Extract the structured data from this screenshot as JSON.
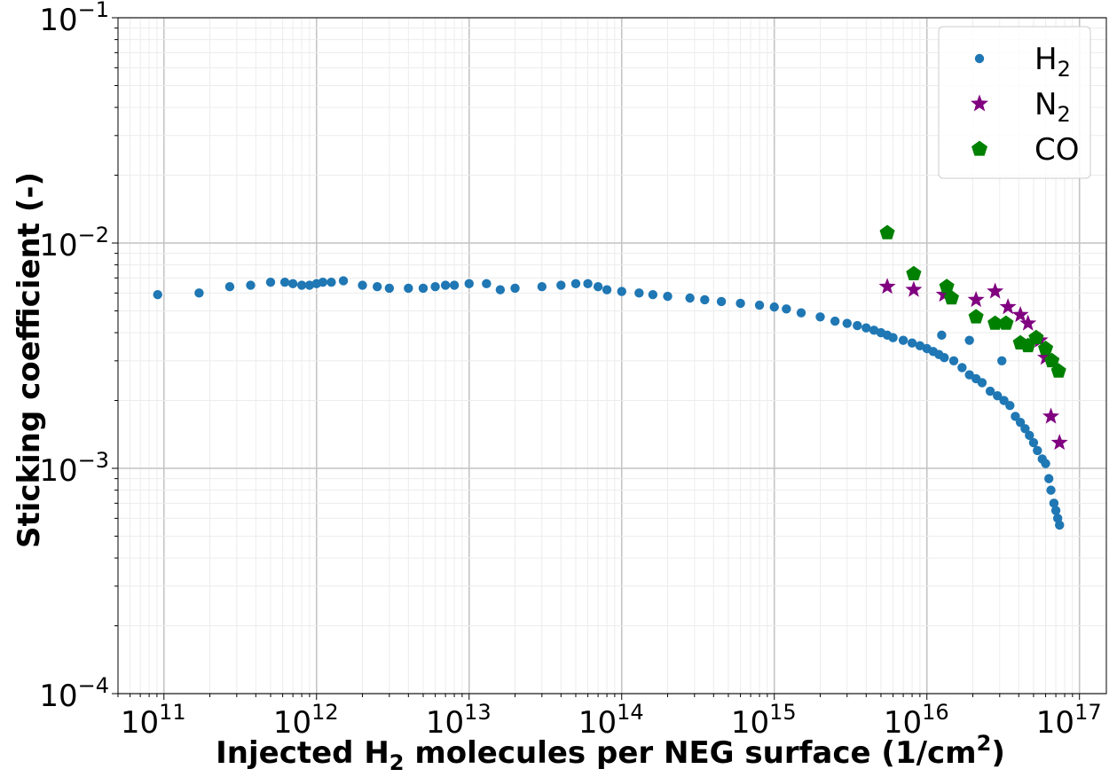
{
  "chart_data": {
    "type": "scatter",
    "title": "",
    "xscale": "log",
    "yscale": "log",
    "xlim": [
      50000000000,
      150000000000000000
    ],
    "ylim": [
      0.0001,
      0.1
    ],
    "grid": true,
    "legend_position": "top-right",
    "xlabel": {
      "pre": "Injected H",
      "sub": "2",
      "mid": " molecules per NEG surface (1/cm",
      "sup": "2",
      "post": ")"
    },
    "ylabel": "Sticking coefficient (-)",
    "x_ticks": [
      {
        "value": 100000000000.0,
        "base": "10",
        "exp": "11"
      },
      {
        "value": 1000000000000.0,
        "base": "10",
        "exp": "12"
      },
      {
        "value": 10000000000000.0,
        "base": "10",
        "exp": "13"
      },
      {
        "value": 100000000000000.0,
        "base": "10",
        "exp": "14"
      },
      {
        "value": 1000000000000000.0,
        "base": "10",
        "exp": "15"
      },
      {
        "value": 1e+16,
        "base": "10",
        "exp": "16"
      },
      {
        "value": 1e+17,
        "base": "10",
        "exp": "17"
      }
    ],
    "y_ticks": [
      {
        "value": 0.0001,
        "base": "10",
        "exp": "−4"
      },
      {
        "value": 0.001,
        "base": "10",
        "exp": "−3"
      },
      {
        "value": 0.01,
        "base": "10",
        "exp": "−2"
      },
      {
        "value": 0.1,
        "base": "10",
        "exp": "−1"
      }
    ],
    "series": [
      {
        "name": "H2",
        "label": "H",
        "label_sub": "2",
        "marker": "circle",
        "color": "#1f77b4",
        "points": [
          [
            91000000000.0,
            0.0059
          ],
          [
            170000000000.0,
            0.006
          ],
          [
            270000000000.0,
            0.0064
          ],
          [
            370000000000.0,
            0.0065
          ],
          [
            500000000000.0,
            0.0067
          ],
          [
            620000000000.0,
            0.0067
          ],
          [
            700000000000.0,
            0.0066
          ],
          [
            800000000000.0,
            0.0065
          ],
          [
            900000000000.0,
            0.0065
          ],
          [
            1000000000000.0,
            0.0066
          ],
          [
            1100000000000.0,
            0.0067
          ],
          [
            1250000000000.0,
            0.0067
          ],
          [
            1500000000000.0,
            0.0068
          ],
          [
            2000000000000.0,
            0.0065
          ],
          [
            2500000000000.0,
            0.0064
          ],
          [
            3000000000000.0,
            0.0063
          ],
          [
            4000000000000.0,
            0.0063
          ],
          [
            5000000000000.0,
            0.0063
          ],
          [
            6000000000000.0,
            0.0064
          ],
          [
            7000000000000.0,
            0.0065
          ],
          [
            8000000000000.0,
            0.0065
          ],
          [
            10000000000000.0,
            0.0066
          ],
          [
            13000000000000.0,
            0.0066
          ],
          [
            16000000000000.0,
            0.0062
          ],
          [
            20000000000000.0,
            0.0063
          ],
          [
            30000000000000.0,
            0.0064
          ],
          [
            40000000000000.0,
            0.0065
          ],
          [
            50000000000000.0,
            0.0066
          ],
          [
            60000000000000.0,
            0.0066
          ],
          [
            70000000000000.0,
            0.0064
          ],
          [
            80000000000000.0,
            0.0062
          ],
          [
            100000000000000.0,
            0.0061
          ],
          [
            130000000000000.0,
            0.006
          ],
          [
            160000000000000.0,
            0.0059
          ],
          [
            200000000000000.0,
            0.0058
          ],
          [
            280000000000000.0,
            0.0057
          ],
          [
            350000000000000.0,
            0.0056
          ],
          [
            450000000000000.0,
            0.0055
          ],
          [
            600000000000000.0,
            0.0054
          ],
          [
            800000000000000.0,
            0.0053
          ],
          [
            1000000000000000.0,
            0.0052
          ],
          [
            1200000000000000.0,
            0.0051
          ],
          [
            1500000000000000.0,
            0.0049
          ],
          [
            2000000000000000.0,
            0.0047
          ],
          [
            2500000000000000.0,
            0.0045
          ],
          [
            3000000000000000.0,
            0.0044
          ],
          [
            3500000000000000.0,
            0.0043
          ],
          [
            4000000000000000.0,
            0.0042
          ],
          [
            4500000000000000.0,
            0.0041
          ],
          [
            5000000000000000.0,
            0.004
          ],
          [
            5500000000000000.0,
            0.0039
          ],
          [
            6000000000000000.0,
            0.0038
          ],
          [
            7000000000000000.0,
            0.0037
          ],
          [
            8000000000000000.0,
            0.0036
          ],
          [
            9000000000000000.0,
            0.0035
          ],
          [
            1e+16,
            0.0034
          ],
          [
            1.1e+16,
            0.0033
          ],
          [
            1.2e+16,
            0.0032
          ],
          [
            1.3e+16,
            0.0031
          ],
          [
            1.5e+16,
            0.003
          ],
          [
            1.7e+16,
            0.0028
          ],
          [
            1.9e+16,
            0.0026
          ],
          [
            2.1e+16,
            0.0025
          ],
          [
            2.3e+16,
            0.0024
          ],
          [
            2.6e+16,
            0.0022
          ],
          [
            2.9e+16,
            0.0021
          ],
          [
            3.2e+16,
            0.002
          ],
          [
            3.5e+16,
            0.0019
          ],
          [
            3.8e+16,
            0.0017
          ],
          [
            4.1e+16,
            0.0016
          ],
          [
            4.4e+16,
            0.0015
          ],
          [
            4.7e+16,
            0.0014
          ],
          [
            5e+16,
            0.0013
          ],
          [
            5.3e+16,
            0.0012
          ],
          [
            5.7e+16,
            0.0011
          ],
          [
            6e+16,
            0.00105
          ],
          [
            6.3e+16,
            0.0009
          ],
          [
            6.5e+16,
            0.0008
          ],
          [
            6.8e+16,
            0.0007
          ],
          [
            7e+16,
            0.00065
          ],
          [
            7.2e+16,
            0.0006
          ],
          [
            7.4e+16,
            0.00056
          ],
          [
            1.25e+16,
            0.0039
          ],
          [
            1.9e+16,
            0.0037
          ],
          [
            3.1e+16,
            0.003
          ]
        ]
      },
      {
        "name": "N2",
        "label": "N",
        "label_sub": "2",
        "marker": "star",
        "color": "#800080",
        "points": [
          [
            5500000000000000.0,
            0.0064
          ],
          [
            8200000000000000.0,
            0.0062
          ],
          [
            1.3e+16,
            0.0059
          ],
          [
            2.1e+16,
            0.0056
          ],
          [
            2.8e+16,
            0.0061
          ],
          [
            3.4e+16,
            0.0052
          ],
          [
            4.1e+16,
            0.0048
          ],
          [
            4.6e+16,
            0.0044
          ],
          [
            5.5e+16,
            0.0037
          ],
          [
            6e+16,
            0.0031
          ],
          [
            6.5e+16,
            0.0017
          ],
          [
            7.4e+16,
            0.0013
          ]
        ]
      },
      {
        "name": "CO",
        "label": "CO",
        "label_sub": "",
        "marker": "pentagon",
        "color": "#008000",
        "points": [
          [
            5500000000000000.0,
            0.0111
          ],
          [
            8200000000000000.0,
            0.0073
          ],
          [
            1.35e+16,
            0.0064
          ],
          [
            1.45e+16,
            0.0057
          ],
          [
            2.1e+16,
            0.0047
          ],
          [
            2.8e+16,
            0.0044
          ],
          [
            3.3e+16,
            0.0044
          ],
          [
            4.1e+16,
            0.0036
          ],
          [
            4.6e+16,
            0.0035
          ],
          [
            5.2e+16,
            0.0038
          ],
          [
            6e+16,
            0.0034
          ],
          [
            6.6e+16,
            0.003
          ],
          [
            7.3e+16,
            0.0027
          ]
        ]
      }
    ]
  }
}
